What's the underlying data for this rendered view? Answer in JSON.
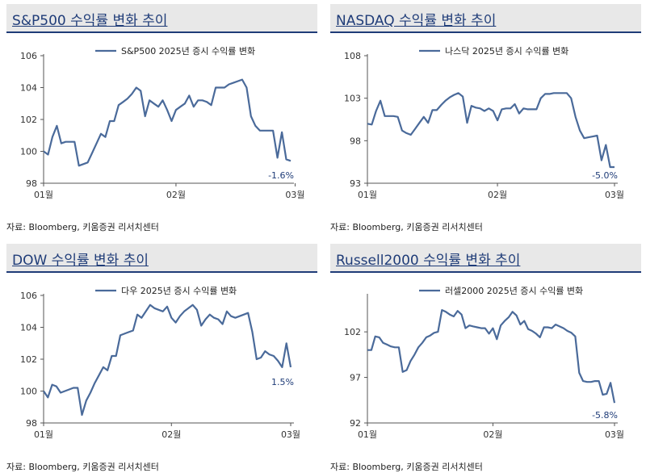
{
  "charts": [
    {
      "title": "S&P500 수익률 변화 추이",
      "legend": "S&P500 2025년 증시 수익률 변화",
      "source": "자료: Bloomberg, 키움증권 리서치센터",
      "end_label": "-1.6%"
    },
    {
      "title": "NASDAQ 수익률 변화 추이",
      "legend": "나스닥 2025년 증시 수익률 변화",
      "source": "자료: Bloomberg, 키움증권 리서치센터",
      "end_label": "-5.0%"
    },
    {
      "title": "DOW 수익률 변화 추이",
      "legend": "다우 2025년 증시 수익률 변화",
      "source": "자료: Bloomberg, 키움증권 리서치센터",
      "end_label": "1.5%"
    },
    {
      "title": "Russell2000 수익률 변화 추이",
      "legend": "러셀2000 2025년 증시 수익률 변화",
      "source": "자료: Bloomberg, 키움증권 리서치센터",
      "end_label": "-5.8%"
    }
  ],
  "chart_data": [
    {
      "type": "line",
      "title": "S&P500 수익률 변화 추이",
      "series": [
        {
          "name": "S&P500 2025년 증시 수익률 변화",
          "values": [
            100,
            99.8,
            100.9,
            101.6,
            100.5,
            100.6,
            100.6,
            100.6,
            99.1,
            99.2,
            99.3,
            99.9,
            100.5,
            101.1,
            100.9,
            101.9,
            101.9,
            102.9,
            103.1,
            103.3,
            103.6,
            104,
            103.8,
            102.2,
            103.2,
            103,
            102.8,
            103.2,
            102.6,
            101.9,
            102.6,
            102.8,
            103,
            103.5,
            102.8,
            103.2,
            103.2,
            103.1,
            102.9,
            104,
            104,
            104,
            104.2,
            104.3,
            104.4,
            104.5,
            104,
            102.2,
            101.6,
            101.3,
            101.3,
            101.3,
            101.3,
            99.6,
            101.2,
            99.5,
            99.4
          ]
        }
      ],
      "x_ticks": [
        "01월",
        "02월",
        "03월"
      ],
      "x_tick_index": [
        0,
        30,
        57
      ],
      "y_ticks": [
        98,
        100,
        102,
        104,
        106
      ],
      "ylim": [
        98,
        106
      ],
      "annotation": "-1.6%"
    },
    {
      "type": "line",
      "title": "NASDAQ 수익률 변화 추이",
      "series": [
        {
          "name": "나스닥 2025년 증시 수익률 변화",
          "values": [
            100,
            99.9,
            101.5,
            102.7,
            100.9,
            100.9,
            100.9,
            100.8,
            99.2,
            98.9,
            98.7,
            99.4,
            100.1,
            100.8,
            100.1,
            101.6,
            101.6,
            102.2,
            102.7,
            103.1,
            103.4,
            103.6,
            103.2,
            100.1,
            102.1,
            101.9,
            101.8,
            101.5,
            101.8,
            101.5,
            100.4,
            101.7,
            101.8,
            101.8,
            102.3,
            101.2,
            101.8,
            101.7,
            101.7,
            101.7,
            103,
            103.5,
            103.5,
            103.6,
            103.6,
            103.6,
            103.6,
            103,
            100.8,
            99.2,
            98.3,
            98.4,
            98.5,
            98.6,
            95.7,
            97.5,
            94.9,
            94.9
          ]
        }
      ],
      "x_ticks": [
        "01월",
        "02월",
        "03월"
      ],
      "x_tick_index": [
        0,
        30,
        57
      ],
      "y_ticks": [
        93,
        98,
        103,
        108
      ],
      "ylim": [
        93,
        108
      ],
      "annotation": "-5.0%"
    },
    {
      "type": "line",
      "title": "DOW 수익률 변화 추이",
      "series": [
        {
          "name": "다우 2025년 증시 수익률 변화",
          "values": [
            100,
            99.6,
            100.4,
            100.3,
            99.9,
            100,
            100.1,
            100.2,
            100.2,
            98.5,
            99.4,
            99.9,
            100.5,
            101,
            101.5,
            101.3,
            102.2,
            102.2,
            103.5,
            103.6,
            103.7,
            103.8,
            104.8,
            104.6,
            105,
            105.4,
            105.2,
            105.1,
            105,
            105.3,
            104.6,
            104.3,
            104.7,
            105,
            105.2,
            105.4,
            105.1,
            104.1,
            104.5,
            104.8,
            104.6,
            104.5,
            104.2,
            105,
            104.7,
            104.6,
            104.7,
            104.8,
            104.9,
            103.7,
            102,
            102.1,
            102.5,
            102.3,
            102.2,
            101.9,
            101.5,
            103,
            101.5
          ]
        }
      ],
      "x_ticks": [
        "01월",
        "02월",
        "03월"
      ],
      "x_tick_index": [
        0,
        30,
        58
      ],
      "y_ticks": [
        98,
        100,
        102,
        104,
        106
      ],
      "ylim": [
        98,
        106
      ],
      "annotation": "1.5%"
    },
    {
      "type": "line",
      "title": "Russell2000 수익률 변화 추이",
      "series": [
        {
          "name": "러셀2000 2025년 증시 수익률 변화",
          "values": [
            100,
            100,
            101.5,
            101.4,
            100.8,
            100.6,
            100.4,
            100.3,
            100.3,
            97.6,
            97.8,
            98.8,
            99.5,
            100.3,
            100.8,
            101.4,
            101.6,
            101.9,
            102,
            104.4,
            104.2,
            103.9,
            103.7,
            104.3,
            103.9,
            102.4,
            102.7,
            102.6,
            102.5,
            102.4,
            102.4,
            101.8,
            102.4,
            101.2,
            102.7,
            103.2,
            103.6,
            104.2,
            103.8,
            102.8,
            103.2,
            102.3,
            102.1,
            101.8,
            101.4,
            102.5,
            102.5,
            102.4,
            102.8,
            102.6,
            102.4,
            102.1,
            101.9,
            101.5,
            97.5,
            96.6,
            96.5,
            96.5,
            96.6,
            96.6,
            95.1,
            95.2,
            96.4,
            94.2
          ]
        }
      ],
      "x_ticks": [
        "01월",
        "02월",
        "03월"
      ],
      "x_tick_index": [
        0,
        32,
        63
      ],
      "y_ticks": [
        92,
        97,
        102
      ],
      "ylim": [
        92,
        106
      ],
      "annotation": "-5.8%"
    }
  ],
  "colors": {
    "line": "#4a6a9a",
    "title_text": "#1f3c78",
    "title_bg": "#e8e8e8",
    "axis": "#555555"
  }
}
